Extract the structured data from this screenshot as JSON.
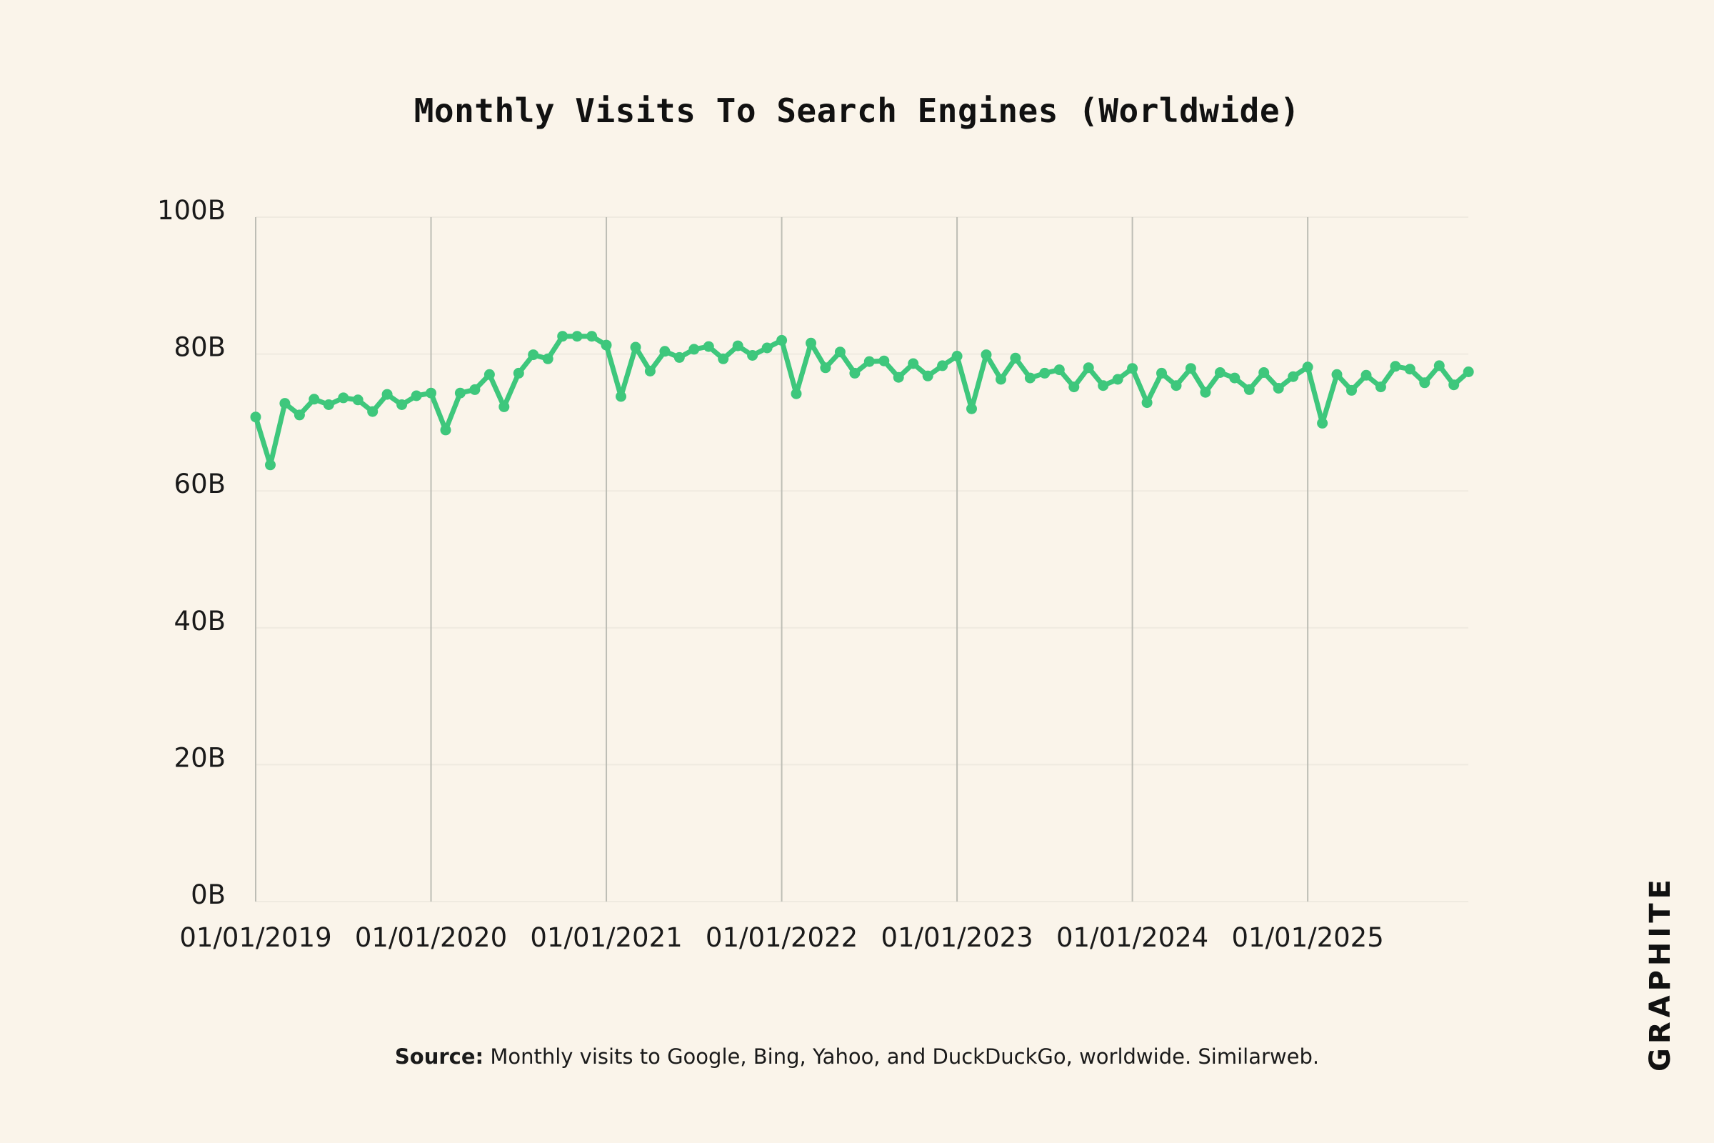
{
  "title": "Monthly Visits To Search Engines (Worldwide)",
  "source": {
    "label": "Source:",
    "text": "Monthly visits to Google, Bing, Yahoo, and DuckDuckGo, worldwide. Similarweb."
  },
  "brand": "GRAPHITE",
  "colors": {
    "background": "#FAF4EA",
    "line": "#3EC77C",
    "grid_vertical": "#BDBDB5",
    "grid_horizontal": "#EFEAE0"
  },
  "chart_data": {
    "type": "line",
    "title": "Monthly Visits To Search Engines (Worldwide)",
    "xlabel": "",
    "ylabel": "",
    "x_start": "2019-01",
    "x_interval": "monthly",
    "x_ticks": [
      "01/01/2019",
      "01/01/2020",
      "01/01/2021",
      "01/01/2022",
      "01/01/2023",
      "01/01/2024",
      "01/01/2025"
    ],
    "y_ticks": [
      "0B",
      "20B",
      "40B",
      "60B",
      "80B",
      "100B"
    ],
    "ylim": [
      0,
      100
    ],
    "y_unit": "B",
    "grid": "vertical at year ticks, faint horizontal at y ticks",
    "series": [
      {
        "values": [
          70.8,
          63.8,
          72.8,
          71.1,
          73.4,
          72.6,
          73.6,
          73.3,
          71.6,
          74.1,
          72.6,
          73.9,
          74.3,
          68.9,
          74.3,
          74.8,
          77.0,
          72.3,
          77.2,
          79.9,
          79.3,
          82.6,
          82.6,
          82.6,
          81.3,
          73.8,
          81.0,
          77.5,
          80.4,
          79.5,
          80.7,
          81.1,
          79.3,
          81.2,
          79.8,
          80.9,
          82.0,
          74.2,
          81.6,
          78.0,
          80.3,
          77.2,
          78.9,
          79.0,
          76.6,
          78.6,
          76.8,
          78.3,
          79.7,
          72.0,
          79.9,
          76.3,
          79.4,
          76.5,
          77.2,
          77.7,
          75.2,
          78.0,
          75.4,
          76.3,
          77.9,
          72.9,
          77.2,
          75.4,
          77.9,
          74.4,
          77.3,
          76.5,
          74.8,
          77.3,
          75.0,
          76.7,
          78.1,
          69.9,
          77.0,
          74.7,
          76.9,
          75.2,
          78.2,
          77.8,
          75.8,
          78.3,
          75.5,
          77.4
        ]
      }
    ]
  }
}
